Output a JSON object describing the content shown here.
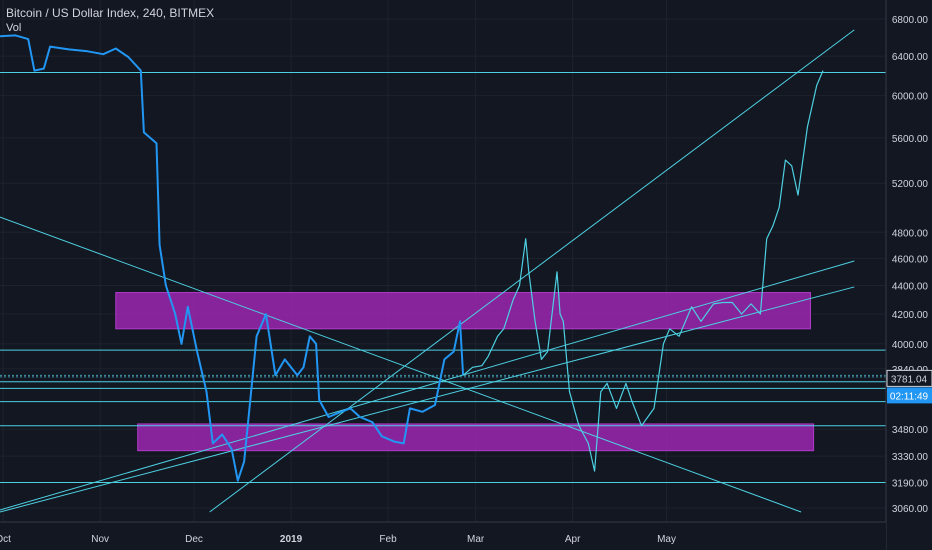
{
  "header": {
    "title": "Bitcoin / US Dollar Index, 240, BITMEX",
    "volume_label": "Vol"
  },
  "price_axis": {
    "ticks": [
      "6800.00",
      "6400.00",
      "6000.00",
      "5600.00",
      "5200.00",
      "4800.00",
      "4600.00",
      "4400.00",
      "4200.00",
      "4000.00",
      "3840.00",
      "3480.00",
      "3330.00",
      "3190.00",
      "3060.00"
    ]
  },
  "price_badges": {
    "last_price": "3781.04",
    "countdown": "02:11:49"
  },
  "time_axis": {
    "labels": [
      "Oct",
      "Nov",
      "Dec",
      "2019",
      "Feb",
      "Mar",
      "Apr",
      "May"
    ]
  },
  "colors": {
    "background": "#131722",
    "price_line": "#2196f3",
    "projection": "#4dd0e1",
    "trendline": "#4dd0e1",
    "zone": "#9c27b0",
    "axis_text": "#d1d4dc",
    "badge_bg": "#2196f3"
  },
  "chart_data": {
    "type": "line",
    "title": "Bitcoin / US Dollar Index, 240, BITMEX",
    "xlabel": "",
    "ylabel": "",
    "scale": "log",
    "ylim": [
      3030,
      6900
    ],
    "grid": true,
    "x_range": [
      "2018-09-30",
      "2019-06-20"
    ],
    "series": [
      {
        "role": "price",
        "points": [
          [
            "2018-09-30",
            6610
          ],
          [
            "2018-10-05",
            6620
          ],
          [
            "2018-10-09",
            6580
          ],
          [
            "2018-10-11",
            6250
          ],
          [
            "2018-10-14",
            6270
          ],
          [
            "2018-10-16",
            6500
          ],
          [
            "2018-10-22",
            6470
          ],
          [
            "2018-10-28",
            6450
          ],
          [
            "2018-11-02",
            6420
          ],
          [
            "2018-11-06",
            6480
          ],
          [
            "2018-11-10",
            6390
          ],
          [
            "2018-11-14",
            6250
          ],
          [
            "2018-11-15",
            5650
          ],
          [
            "2018-11-19",
            5550
          ],
          [
            "2018-11-20",
            4700
          ],
          [
            "2018-11-22",
            4400
          ],
          [
            "2018-11-25",
            4200
          ],
          [
            "2018-11-27",
            4000
          ],
          [
            "2018-11-29",
            4250
          ],
          [
            "2018-12-02",
            3950
          ],
          [
            "2018-12-05",
            3700
          ],
          [
            "2018-12-07",
            3400
          ],
          [
            "2018-12-10",
            3450
          ],
          [
            "2018-12-13",
            3370
          ],
          [
            "2018-12-15",
            3200
          ],
          [
            "2018-12-17",
            3300
          ],
          [
            "2018-12-19",
            3650
          ],
          [
            "2018-12-21",
            4050
          ],
          [
            "2018-12-24",
            4200
          ],
          [
            "2018-12-27",
            3800
          ],
          [
            "2018-12-30",
            3900
          ],
          [
            "2019-01-03",
            3800
          ],
          [
            "2019-01-05",
            3850
          ],
          [
            "2019-01-07",
            4050
          ],
          [
            "2019-01-09",
            4000
          ],
          [
            "2019-01-10",
            3650
          ],
          [
            "2019-01-13",
            3550
          ],
          [
            "2019-01-17",
            3580
          ],
          [
            "2019-01-20",
            3600
          ],
          [
            "2019-01-23",
            3550
          ],
          [
            "2019-01-27",
            3520
          ],
          [
            "2019-01-30",
            3440
          ],
          [
            "2019-02-03",
            3410
          ],
          [
            "2019-02-06",
            3400
          ],
          [
            "2019-02-08",
            3600
          ],
          [
            "2019-02-12",
            3580
          ],
          [
            "2019-02-16",
            3620
          ],
          [
            "2019-02-19",
            3900
          ],
          [
            "2019-02-22",
            3950
          ],
          [
            "2019-02-24",
            4150
          ],
          [
            "2019-02-25",
            3800
          ]
        ]
      },
      {
        "role": "projection",
        "points": [
          [
            "2019-02-25",
            3800
          ],
          [
            "2019-02-28",
            3850
          ],
          [
            "2019-03-03",
            3860
          ],
          [
            "2019-03-05",
            3920
          ],
          [
            "2019-03-08",
            4050
          ],
          [
            "2019-03-10",
            4100
          ],
          [
            "2019-03-13",
            4300
          ],
          [
            "2019-03-15",
            4400
          ],
          [
            "2019-03-17",
            4750
          ],
          [
            "2019-03-18",
            4500
          ],
          [
            "2019-03-20",
            4150
          ],
          [
            "2019-03-22",
            3900
          ],
          [
            "2019-03-24",
            3950
          ],
          [
            "2019-03-27",
            4500
          ],
          [
            "2019-03-28",
            4200
          ],
          [
            "2019-03-29",
            4150
          ],
          [
            "2019-03-31",
            3700
          ],
          [
            "2019-04-03",
            3500
          ],
          [
            "2019-04-06",
            3400
          ],
          [
            "2019-04-08",
            3250
          ],
          [
            "2019-04-10",
            3700
          ],
          [
            "2019-04-12",
            3750
          ],
          [
            "2019-04-15",
            3600
          ],
          [
            "2019-04-18",
            3750
          ],
          [
            "2019-04-20",
            3640
          ],
          [
            "2019-04-23",
            3500
          ],
          [
            "2019-04-27",
            3600
          ],
          [
            "2019-04-30",
            4000
          ],
          [
            "2019-05-02",
            4100
          ],
          [
            "2019-05-05",
            4050
          ],
          [
            "2019-05-09",
            4250
          ],
          [
            "2019-05-12",
            4150
          ],
          [
            "2019-05-16",
            4270
          ],
          [
            "2019-05-19",
            4280
          ],
          [
            "2019-05-22",
            4280
          ],
          [
            "2019-05-25",
            4200
          ],
          [
            "2019-05-28",
            4270
          ],
          [
            "2019-05-31",
            4200
          ],
          [
            "2019-06-02",
            4750
          ],
          [
            "2019-06-04",
            4850
          ],
          [
            "2019-06-06",
            5000
          ],
          [
            "2019-06-08",
            5400
          ],
          [
            "2019-06-10",
            5350
          ],
          [
            "2019-06-12",
            5100
          ],
          [
            "2019-06-15",
            5700
          ],
          [
            "2019-06-18",
            6100
          ],
          [
            "2019-06-20",
            6250
          ]
        ]
      }
    ],
    "horizontal_levels": [
      6230,
      3960,
      3800,
      3790,
      3760,
      3720,
      3640,
      3500,
      3190
    ],
    "zones": [
      {
        "from": "2018-11-06",
        "to": "2019-06-16",
        "low": 4100,
        "high": 4350
      },
      {
        "from": "2018-11-13",
        "to": "2019-06-17",
        "low": 3360,
        "high": 3510
      }
    ],
    "trendlines": [
      {
        "x1": "2018-09-30",
        "y1": 4920,
        "x2": "2019-06-13",
        "y2": 3040
      },
      {
        "x1": "2018-09-30",
        "y1": 3050,
        "x2": "2019-06-30",
        "y2": 4580
      },
      {
        "x1": "2018-09-30",
        "y1": 3040,
        "x2": "2019-06-30",
        "y2": 4390
      },
      {
        "x1": "2018-12-06",
        "y1": 3040,
        "x2": "2019-06-30",
        "y2": 6680
      }
    ]
  }
}
